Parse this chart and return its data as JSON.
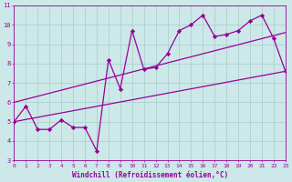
{
  "xlabel": "Windchill (Refroidissement éolien,°C)",
  "ylabel": "",
  "bg_color": "#cce8e8",
  "line_color": "#990099",
  "grid_color": "#aacccc",
  "xlim": [
    0,
    23
  ],
  "ylim": [
    3,
    11
  ],
  "xticks": [
    0,
    1,
    2,
    3,
    4,
    5,
    6,
    7,
    8,
    9,
    10,
    11,
    12,
    13,
    14,
    15,
    16,
    17,
    18,
    19,
    20,
    21,
    22,
    23
  ],
  "yticks": [
    3,
    4,
    5,
    6,
    7,
    8,
    9,
    10,
    11
  ],
  "line1_x": [
    0,
    1,
    2,
    3,
    4,
    5,
    6,
    7,
    8,
    9,
    10,
    11,
    12,
    13,
    14,
    15,
    16,
    17,
    18,
    19,
    20,
    21,
    22,
    23
  ],
  "line1_y": [
    5.0,
    5.8,
    4.6,
    4.6,
    5.1,
    4.7,
    4.7,
    3.5,
    8.2,
    6.7,
    9.7,
    7.7,
    7.8,
    8.5,
    9.7,
    10.0,
    10.5,
    9.4,
    9.5,
    9.7,
    10.2,
    10.5,
    9.3,
    7.6
  ],
  "line2_x": [
    0,
    23
  ],
  "line2_y": [
    5.0,
    7.6
  ],
  "line3_x": [
    0,
    23
  ],
  "line3_y": [
    6.0,
    9.6
  ]
}
